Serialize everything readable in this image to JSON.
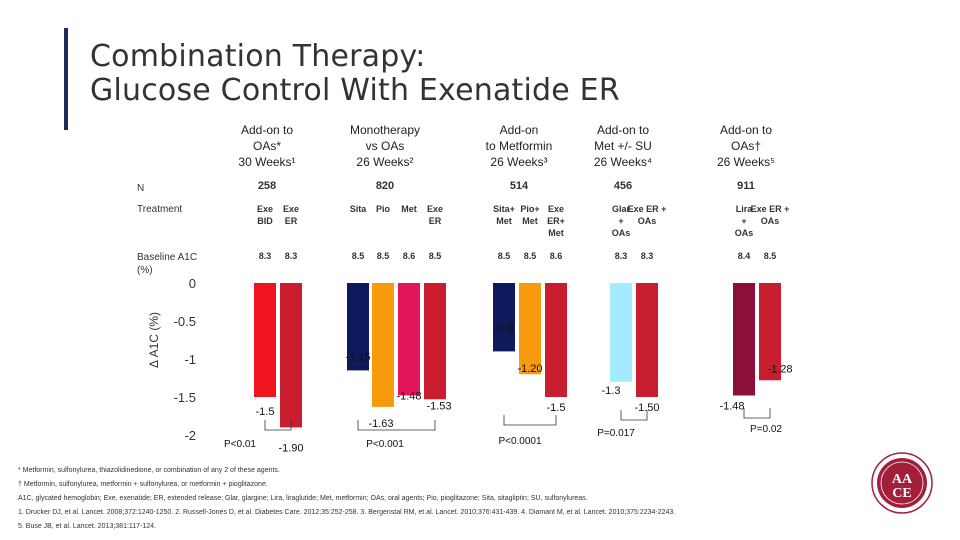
{
  "title": {
    "line1": "Combination Therapy:",
    "line2": "Glucose Control With Exenatide ER"
  },
  "studies": [
    {
      "lines": [
        "Add-on to",
        "OAs*",
        "30 Weeks¹"
      ],
      "n": "258"
    },
    {
      "lines": [
        "Monotherapy",
        "vs OAs",
        "26 Weeks²"
      ],
      "n": "820"
    },
    {
      "lines": [
        "Add-on",
        "to Metformin",
        "26 Weeks³"
      ],
      "n": "514"
    },
    {
      "lines": [
        "Add-on to",
        "Met +/- SU",
        "26 Weeks⁴"
      ],
      "n": "456"
    },
    {
      "lines": [
        "Add-on to",
        "OAs†",
        "26 Weeks⁵"
      ],
      "n": "911"
    }
  ],
  "row_labels": {
    "n": "N",
    "treatment": "Treatment",
    "baseline_line1": "Baseline A1C",
    "baseline_line2": "(%)"
  },
  "colors": {
    "exe_bid": "#f0141e",
    "exe_er": "#c81e2d",
    "sita": "#0e1a5c",
    "pio": "#f79a0e",
    "met": "#e0155b",
    "glar": "#a3ecff",
    "lira": "#8b0f3a",
    "accent": "#1e2b57",
    "logo": "#a31e3b"
  },
  "chart_data": {
    "type": "bar",
    "ylabel": "Δ A1C (%)",
    "ylim": [
      -2,
      0
    ],
    "yticks": [
      "0",
      "-0.5",
      "-1",
      "-1.5",
      "-2"
    ],
    "series": [
      {
        "group": 0,
        "treatment": [
          "Exe",
          "BID"
        ],
        "baseline": "8.3",
        "value": -1.5,
        "label": "-1.5",
        "color_key": "exe_bid"
      },
      {
        "group": 0,
        "treatment": [
          "Exe",
          "ER"
        ],
        "baseline": "8.3",
        "value": -1.9,
        "label": "-1.90",
        "color_key": "exe_er"
      },
      {
        "group": 1,
        "treatment": [
          "Sita"
        ],
        "baseline": "8.5",
        "value": -1.15,
        "label": "-1.15",
        "color_key": "sita"
      },
      {
        "group": 1,
        "treatment": [
          "Pio"
        ],
        "baseline": "8.5",
        "value": -1.63,
        "label": "-1.63",
        "color_key": "pio"
      },
      {
        "group": 1,
        "treatment": [
          "Met"
        ],
        "baseline": "8.6",
        "value": -1.48,
        "label": "-1.48",
        "color_key": "met"
      },
      {
        "group": 1,
        "treatment": [
          "Exe",
          "ER"
        ],
        "baseline": "8.5",
        "value": -1.53,
        "label": "-1.53",
        "color_key": "exe_er"
      },
      {
        "group": 2,
        "treatment": [
          "Sita+",
          "Met"
        ],
        "baseline": "8.5",
        "value": -0.9,
        "label": "-0.9",
        "color_key": "sita"
      },
      {
        "group": 2,
        "treatment": [
          "Pio+",
          "Met"
        ],
        "baseline": "8.5",
        "value": -1.2,
        "label": "-1.20",
        "color_key": "pio"
      },
      {
        "group": 2,
        "treatment": [
          "Exe",
          "ER+",
          "Met"
        ],
        "baseline": "8.6",
        "value": -1.5,
        "label": "-1.5",
        "color_key": "exe_er"
      },
      {
        "group": 3,
        "treatment": [
          "Glar",
          "+",
          "OAs"
        ],
        "baseline": "8.3",
        "value": -1.3,
        "label": "-1.3",
        "color_key": "glar"
      },
      {
        "group": 3,
        "treatment": [
          "Exe ER +",
          "OAs"
        ],
        "baseline": "8.3",
        "value": -1.5,
        "label": "-1.50",
        "color_key": "exe_er"
      },
      {
        "group": 4,
        "treatment": [
          "Lira",
          "+",
          "OAs"
        ],
        "baseline": "8.4",
        "value": -1.48,
        "label": "-1.48",
        "color_key": "lira"
      },
      {
        "group": 4,
        "treatment": [
          "Exe ER +",
          "OAs"
        ],
        "baseline": "8.5",
        "value": -1.28,
        "label": "-1.28",
        "color_key": "exe_er"
      }
    ],
    "pvalues": [
      {
        "group": 0,
        "label": "P<0.01"
      },
      {
        "group": 1,
        "label": "P<0.001"
      },
      {
        "group": 2,
        "label": "P<0.0001"
      },
      {
        "group": 3,
        "label": "P=0.017"
      },
      {
        "group": 4,
        "label": "P=0.02"
      }
    ]
  },
  "footnotes": [
    "* Metformin, sulfonylurea, thiazolidinedione, or combination of any 2 of these agents.",
    "† Metformin, sulfonylurea, metformin + sulfonylurea, or metformin + pioglitazone.",
    "A1C, glycated hemoglobin; Exe, exenatide; ER, extended release; Glar, glargine; Lira, liraglutide; Met, metformin; OAs, oral agents; Pio, pioglitazone; Sita, sitagliptin; SU, sulfonylureas.",
    "1. Drucker DJ, et al. Lancet. 2008;372:1240-1250. 2. Russell-Jones D, et al. Diabetes Care. 2012;35:252-258. 3. Bergenstal RM, et al. Lancet. 2010;376:431-439. 4. Diamant M, et al. Lancet. 2010;375:2234-2243.",
    "5. Buse JB, et al. Lancet. 2013;381:117-124."
  ],
  "logo": {
    "letters_top": "AA",
    "letters_bottom": "CE"
  }
}
